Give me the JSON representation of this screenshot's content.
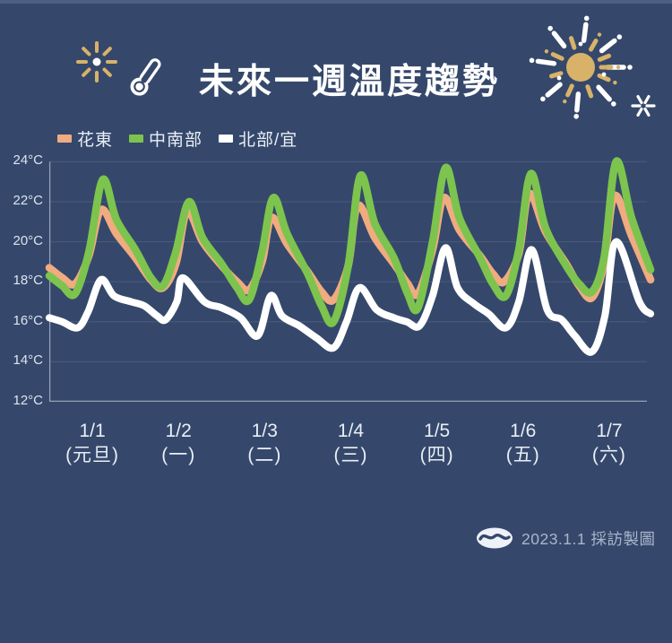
{
  "colors": {
    "background": "#35486b",
    "top_strip": "#4d5f85",
    "grid_line": "#47587a",
    "axis_line": "#93a0b8",
    "gold": "#d8b269",
    "white": "#ffffff",
    "title_text": "#ffffff",
    "axis_text": "#dde4ef",
    "credit_text": "#a9b6cc"
  },
  "header": {
    "title": "未來一週溫度趨勢",
    "icons": [
      "sparkle-burst-small-icon",
      "thermometer-icon",
      "firework-large-icon",
      "sparkle-asterisk-icon"
    ]
  },
  "footer": {
    "logo_icon": "news-eye-logo-icon",
    "credit": "2023.1.1 採訪製圖"
  },
  "chart_data": {
    "type": "line",
    "title": "未來一週溫度趨勢",
    "ylabel": "°C",
    "ylim": [
      12,
      24.15
    ],
    "y_ticks": [
      12,
      14,
      16,
      18,
      20,
      22,
      24
    ],
    "y_tick_suffix": "°C",
    "grid": true,
    "legend_position": "top-left",
    "x_categories": [
      {
        "date": "1/1",
        "weekday": "(元旦)"
      },
      {
        "date": "1/2",
        "weekday": "(一)"
      },
      {
        "date": "1/3",
        "weekday": "(二)"
      },
      {
        "date": "1/4",
        "weekday": "(三)"
      },
      {
        "date": "1/5",
        "weekday": "(四)"
      },
      {
        "date": "1/6",
        "weekday": "(五)"
      },
      {
        "date": "1/7",
        "weekday": "(六)"
      }
    ],
    "x_axis_note": "x values below are day index 0-7 (fractions of each day)",
    "series": [
      {
        "name": "花東",
        "key": "huadong",
        "color": "#f0ab80",
        "width": 8.5,
        "daily_peaks_c": [
          21.6,
          21.5,
          21.2,
          21.8,
          22.2,
          22.4,
          22.3
        ],
        "points": [
          [
            0,
            18.7
          ],
          [
            0.15,
            18.2
          ],
          [
            0.3,
            17.9
          ],
          [
            0.46,
            19.3
          ],
          [
            0.6,
            21.6
          ],
          [
            0.78,
            20.4
          ],
          [
            1.0,
            19.2
          ],
          [
            1.18,
            18.1
          ],
          [
            1.32,
            17.7
          ],
          [
            1.47,
            18.9
          ],
          [
            1.6,
            21.5
          ],
          [
            1.78,
            20.0
          ],
          [
            2.0,
            18.8
          ],
          [
            2.18,
            18.0
          ],
          [
            2.32,
            17.6
          ],
          [
            2.47,
            19.0
          ],
          [
            2.58,
            21.2
          ],
          [
            2.76,
            19.9
          ],
          [
            3.0,
            18.5
          ],
          [
            3.16,
            17.5
          ],
          [
            3.3,
            17.1
          ],
          [
            3.47,
            18.8
          ],
          [
            3.58,
            21.8
          ],
          [
            3.78,
            20.2
          ],
          [
            4.0,
            18.9
          ],
          [
            4.16,
            17.9
          ],
          [
            4.28,
            17.4
          ],
          [
            4.45,
            19.6
          ],
          [
            4.58,
            22.2
          ],
          [
            4.76,
            20.6
          ],
          [
            5.0,
            19.3
          ],
          [
            5.15,
            18.4
          ],
          [
            5.28,
            18.0
          ],
          [
            5.45,
            19.4
          ],
          [
            5.57,
            22.4
          ],
          [
            5.76,
            20.5
          ],
          [
            6.0,
            18.9
          ],
          [
            6.15,
            17.8
          ],
          [
            6.3,
            17.2
          ],
          [
            6.44,
            18.9
          ],
          [
            6.56,
            22.3
          ],
          [
            6.76,
            20.3
          ],
          [
            6.98,
            18.1
          ]
        ]
      },
      {
        "name": "中南部",
        "key": "central-south",
        "color": "#7cc44d",
        "width": 8.5,
        "daily_peaks_c": [
          23.1,
          22.0,
          22.2,
          23.3,
          23.7,
          23.4,
          24.0
        ],
        "points": [
          [
            0,
            18.3
          ],
          [
            0.15,
            17.8
          ],
          [
            0.3,
            17.4
          ],
          [
            0.46,
            19.5
          ],
          [
            0.62,
            23.1
          ],
          [
            0.78,
            21.1
          ],
          [
            1.0,
            19.6
          ],
          [
            1.18,
            18.2
          ],
          [
            1.32,
            17.8
          ],
          [
            1.47,
            19.5
          ],
          [
            1.62,
            22.0
          ],
          [
            1.78,
            20.2
          ],
          [
            2.0,
            18.9
          ],
          [
            2.18,
            17.7
          ],
          [
            2.32,
            17.1
          ],
          [
            2.47,
            19.5
          ],
          [
            2.6,
            22.2
          ],
          [
            2.76,
            20.4
          ],
          [
            3.0,
            18.4
          ],
          [
            3.16,
            16.8
          ],
          [
            3.3,
            16.0
          ],
          [
            3.47,
            18.8
          ],
          [
            3.61,
            23.3
          ],
          [
            3.78,
            20.9
          ],
          [
            4.0,
            19.2
          ],
          [
            4.16,
            17.4
          ],
          [
            4.28,
            16.7
          ],
          [
            4.45,
            20.0
          ],
          [
            4.6,
            23.7
          ],
          [
            4.76,
            21.2
          ],
          [
            5.0,
            19.2
          ],
          [
            5.15,
            17.9
          ],
          [
            5.3,
            17.3
          ],
          [
            5.45,
            19.6
          ],
          [
            5.59,
            23.4
          ],
          [
            5.76,
            20.7
          ],
          [
            6.0,
            18.8
          ],
          [
            6.15,
            17.9
          ],
          [
            6.3,
            17.5
          ],
          [
            6.44,
            19.2
          ],
          [
            6.58,
            24.0
          ],
          [
            6.76,
            21.2
          ],
          [
            6.98,
            18.6
          ]
        ]
      },
      {
        "name": "北部/宜",
        "key": "north-yilan",
        "color": "#ffffff",
        "width": 8,
        "daily_peaks_c": [
          18.1,
          18.2,
          17.3,
          17.7,
          19.7,
          19.6,
          20.0
        ],
        "points": [
          [
            0,
            16.2
          ],
          [
            0.15,
            16.0
          ],
          [
            0.33,
            15.7
          ],
          [
            0.45,
            16.5
          ],
          [
            0.6,
            18.1
          ],
          [
            0.75,
            17.3
          ],
          [
            0.95,
            17.0
          ],
          [
            1.1,
            16.8
          ],
          [
            1.25,
            16.3
          ],
          [
            1.35,
            16.1
          ],
          [
            1.48,
            17.0
          ],
          [
            1.55,
            18.2
          ],
          [
            1.8,
            17.0
          ],
          [
            2.0,
            16.7
          ],
          [
            2.22,
            16.2
          ],
          [
            2.42,
            15.3
          ],
          [
            2.57,
            17.3
          ],
          [
            2.7,
            16.3
          ],
          [
            2.9,
            15.8
          ],
          [
            3.1,
            15.2
          ],
          [
            3.3,
            14.7
          ],
          [
            3.45,
            16.0
          ],
          [
            3.6,
            17.7
          ],
          [
            3.8,
            16.6
          ],
          [
            4.0,
            16.2
          ],
          [
            4.15,
            16.0
          ],
          [
            4.3,
            15.8
          ],
          [
            4.45,
            17.3
          ],
          [
            4.6,
            19.7
          ],
          [
            4.74,
            17.7
          ],
          [
            4.93,
            16.9
          ],
          [
            5.1,
            16.4
          ],
          [
            5.3,
            15.7
          ],
          [
            5.45,
            17.0
          ],
          [
            5.6,
            19.6
          ],
          [
            5.78,
            16.6
          ],
          [
            5.95,
            16.1
          ],
          [
            6.1,
            15.3
          ],
          [
            6.3,
            14.5
          ],
          [
            6.45,
            16.3
          ],
          [
            6.58,
            20.0
          ],
          [
            6.85,
            17.0
          ],
          [
            6.98,
            16.4
          ]
        ]
      }
    ]
  }
}
